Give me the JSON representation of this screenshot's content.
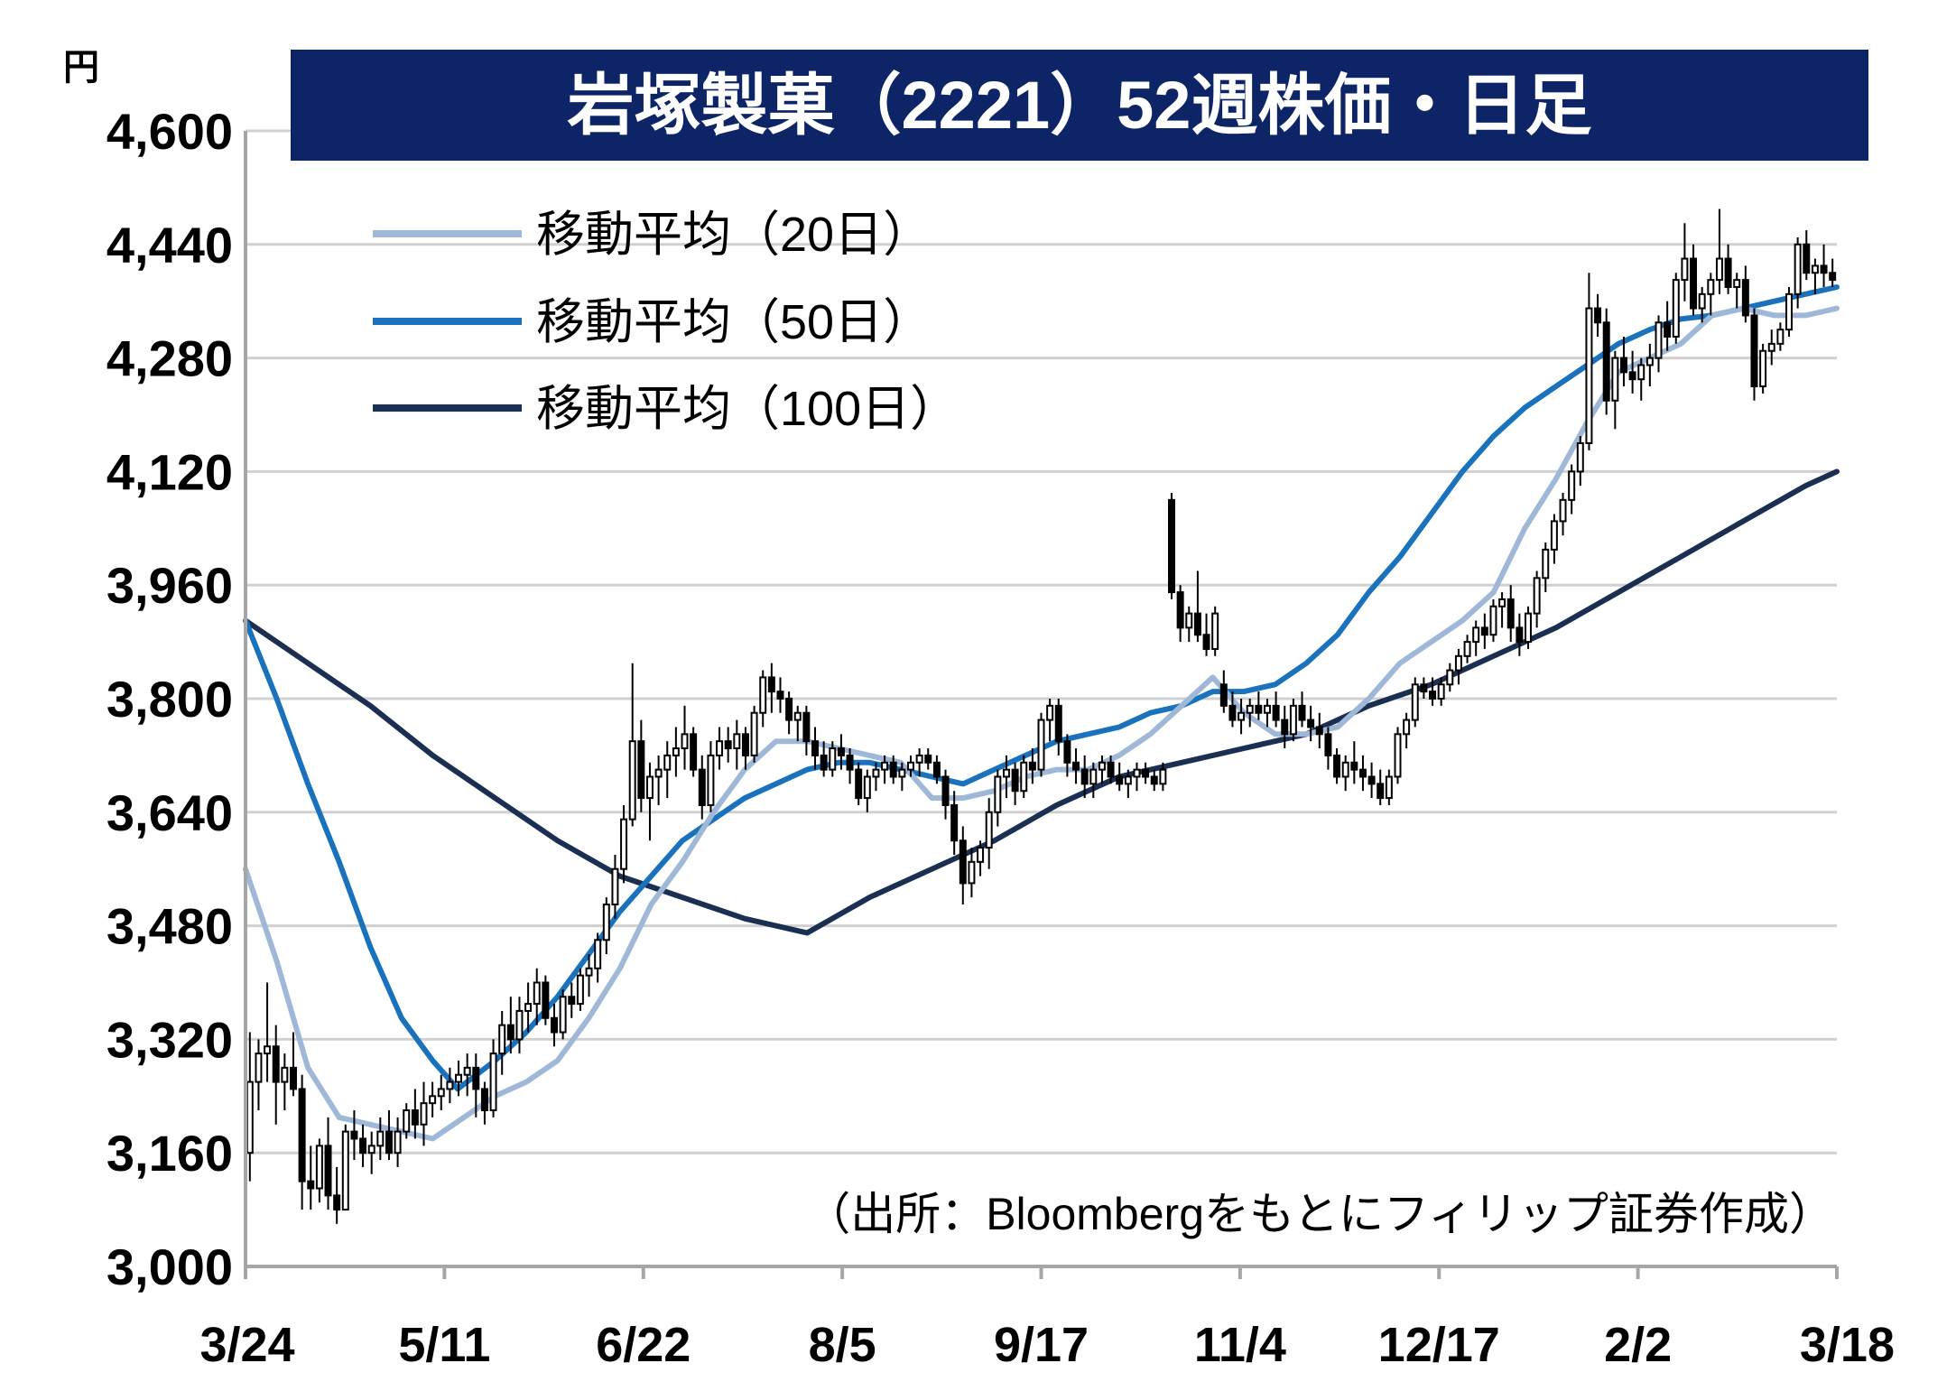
{
  "chart_data": {
    "type": "candlestick",
    "title": "岩塚製菓（2221）52週株価・日足",
    "yunit": "円",
    "ylim": [
      3000,
      4600
    ],
    "yticks": [
      "4,600",
      "4,440",
      "4,280",
      "4,120",
      "3,960",
      "3,800",
      "3,640",
      "3,480",
      "3,320",
      "3,160",
      "3,000"
    ],
    "xticks": [
      "3/24",
      "5/11",
      "6/22",
      "8/5",
      "9/17",
      "11/4",
      "12/17",
      "2/2",
      "3/18"
    ],
    "source": "（出所：Bloombergをもとにフィリップ証券作成）",
    "legend": [
      "移動平均（20日）",
      "移動平均（50日）",
      "移動平均（100日）"
    ],
    "colors": {
      "ma20": "#9fb8d8",
      "ma50": "#1a72bd",
      "ma100": "#1b2f52",
      "candle": "#000000",
      "grid": "#d0d0d0",
      "title_bg": "#0d2566"
    },
    "ma20_anchors": [
      [
        0,
        3560
      ],
      [
        5,
        3430
      ],
      [
        10,
        3280
      ],
      [
        15,
        3210
      ],
      [
        20,
        3200
      ],
      [
        25,
        3190
      ],
      [
        30,
        3180
      ],
      [
        35,
        3210
      ],
      [
        40,
        3240
      ],
      [
        45,
        3260
      ],
      [
        50,
        3290
      ],
      [
        55,
        3350
      ],
      [
        60,
        3420
      ],
      [
        65,
        3510
      ],
      [
        70,
        3570
      ],
      [
        75,
        3640
      ],
      [
        80,
        3700
      ],
      [
        85,
        3740
      ],
      [
        90,
        3740
      ],
      [
        95,
        3730
      ],
      [
        100,
        3720
      ],
      [
        105,
        3710
      ],
      [
        110,
        3660
      ],
      [
        115,
        3660
      ],
      [
        120,
        3670
      ],
      [
        125,
        3690
      ],
      [
        130,
        3700
      ],
      [
        135,
        3700
      ],
      [
        140,
        3720
      ],
      [
        145,
        3750
      ],
      [
        150,
        3790
      ],
      [
        155,
        3830
      ],
      [
        157,
        3810
      ],
      [
        160,
        3780
      ],
      [
        165,
        3750
      ],
      [
        170,
        3750
      ],
      [
        175,
        3760
      ],
      [
        180,
        3800
      ],
      [
        185,
        3850
      ],
      [
        190,
        3880
      ],
      [
        195,
        3910
      ],
      [
        200,
        3950
      ],
      [
        205,
        4040
      ],
      [
        210,
        4110
      ],
      [
        215,
        4190
      ],
      [
        220,
        4260
      ],
      [
        225,
        4280
      ],
      [
        230,
        4300
      ],
      [
        235,
        4340
      ],
      [
        240,
        4350
      ],
      [
        245,
        4340
      ],
      [
        250,
        4340
      ],
      [
        255,
        4350
      ]
    ],
    "ma50_anchors": [
      [
        0,
        3910
      ],
      [
        5,
        3800
      ],
      [
        10,
        3680
      ],
      [
        15,
        3570
      ],
      [
        20,
        3450
      ],
      [
        25,
        3350
      ],
      [
        30,
        3290
      ],
      [
        34,
        3250
      ],
      [
        40,
        3290
      ],
      [
        45,
        3330
      ],
      [
        50,
        3380
      ],
      [
        55,
        3440
      ],
      [
        60,
        3500
      ],
      [
        65,
        3550
      ],
      [
        70,
        3600
      ],
      [
        75,
        3630
      ],
      [
        80,
        3660
      ],
      [
        85,
        3680
      ],
      [
        90,
        3700
      ],
      [
        95,
        3710
      ],
      [
        100,
        3710
      ],
      [
        105,
        3700
      ],
      [
        110,
        3690
      ],
      [
        115,
        3680
      ],
      [
        120,
        3700
      ],
      [
        125,
        3720
      ],
      [
        130,
        3740
      ],
      [
        135,
        3750
      ],
      [
        140,
        3760
      ],
      [
        145,
        3780
      ],
      [
        150,
        3790
      ],
      [
        155,
        3810
      ],
      [
        160,
        3810
      ],
      [
        165,
        3820
      ],
      [
        170,
        3850
      ],
      [
        175,
        3890
      ],
      [
        180,
        3950
      ],
      [
        185,
        4000
      ],
      [
        190,
        4060
      ],
      [
        195,
        4120
      ],
      [
        200,
        4170
      ],
      [
        205,
        4210
      ],
      [
        210,
        4240
      ],
      [
        215,
        4270
      ],
      [
        220,
        4300
      ],
      [
        225,
        4320
      ],
      [
        230,
        4335
      ],
      [
        235,
        4340
      ],
      [
        240,
        4350
      ],
      [
        245,
        4360
      ],
      [
        250,
        4370
      ],
      [
        255,
        4380
      ]
    ],
    "ma100_anchors": [
      [
        0,
        3910
      ],
      [
        10,
        3850
      ],
      [
        20,
        3790
      ],
      [
        30,
        3720
      ],
      [
        40,
        3660
      ],
      [
        50,
        3600
      ],
      [
        60,
        3550
      ],
      [
        70,
        3520
      ],
      [
        80,
        3490
      ],
      [
        90,
        3470
      ],
      [
        96,
        3500
      ],
      [
        100,
        3520
      ],
      [
        110,
        3560
      ],
      [
        120,
        3600
      ],
      [
        130,
        3650
      ],
      [
        140,
        3690
      ],
      [
        150,
        3710
      ],
      [
        160,
        3730
      ],
      [
        170,
        3750
      ],
      [
        180,
        3790
      ],
      [
        190,
        3820
      ],
      [
        200,
        3860
      ],
      [
        210,
        3900
      ],
      [
        220,
        3950
      ],
      [
        230,
        4000
      ],
      [
        240,
        4050
      ],
      [
        250,
        4100
      ],
      [
        255,
        4120
      ]
    ],
    "candles": [
      [
        3160,
        3330,
        3120,
        3260
      ],
      [
        3260,
        3320,
        3220,
        3300
      ],
      [
        3300,
        3400,
        3260,
        3310
      ],
      [
        3310,
        3340,
        3200,
        3260
      ],
      [
        3260,
        3300,
        3220,
        3280
      ],
      [
        3280,
        3330,
        3240,
        3250
      ],
      [
        3250,
        3270,
        3080,
        3120
      ],
      [
        3120,
        3170,
        3080,
        3110
      ],
      [
        3110,
        3180,
        3090,
        3170
      ],
      [
        3170,
        3210,
        3080,
        3100
      ],
      [
        3100,
        3140,
        3060,
        3080
      ],
      [
        3080,
        3200,
        3080,
        3190
      ],
      [
        3190,
        3220,
        3150,
        3180
      ],
      [
        3180,
        3200,
        3140,
        3160
      ],
      [
        3160,
        3190,
        3130,
        3170
      ],
      [
        3170,
        3210,
        3150,
        3190
      ],
      [
        3190,
        3220,
        3150,
        3160
      ],
      [
        3160,
        3210,
        3140,
        3190
      ],
      [
        3190,
        3230,
        3180,
        3220
      ],
      [
        3220,
        3250,
        3180,
        3200
      ],
      [
        3200,
        3260,
        3170,
        3230
      ],
      [
        3230,
        3260,
        3210,
        3240
      ],
      [
        3240,
        3270,
        3220,
        3250
      ],
      [
        3250,
        3280,
        3230,
        3260
      ],
      [
        3260,
        3290,
        3240,
        3270
      ],
      [
        3270,
        3300,
        3240,
        3280
      ],
      [
        3280,
        3300,
        3210,
        3250
      ],
      [
        3250,
        3260,
        3200,
        3220
      ],
      [
        3220,
        3320,
        3210,
        3300
      ],
      [
        3300,
        3360,
        3270,
        3340
      ],
      [
        3340,
        3380,
        3300,
        3320
      ],
      [
        3320,
        3380,
        3300,
        3360
      ],
      [
        3360,
        3400,
        3330,
        3370
      ],
      [
        3370,
        3420,
        3340,
        3400
      ],
      [
        3400,
        3410,
        3340,
        3350
      ],
      [
        3350,
        3370,
        3310,
        3330
      ],
      [
        3330,
        3390,
        3320,
        3380
      ],
      [
        3380,
        3400,
        3350,
        3370
      ],
      [
        3370,
        3420,
        3360,
        3410
      ],
      [
        3410,
        3440,
        3380,
        3420
      ],
      [
        3420,
        3470,
        3400,
        3460
      ],
      [
        3460,
        3520,
        3440,
        3510
      ],
      [
        3510,
        3580,
        3490,
        3560
      ],
      [
        3560,
        3650,
        3540,
        3630
      ],
      [
        3630,
        3850,
        3620,
        3740
      ],
      [
        3740,
        3770,
        3640,
        3660
      ],
      [
        3660,
        3710,
        3600,
        3690
      ],
      [
        3690,
        3720,
        3650,
        3700
      ],
      [
        3700,
        3740,
        3660,
        3720
      ],
      [
        3720,
        3760,
        3690,
        3730
      ],
      [
        3730,
        3790,
        3700,
        3750
      ],
      [
        3750,
        3760,
        3690,
        3700
      ],
      [
        3700,
        3720,
        3630,
        3650
      ],
      [
        3650,
        3740,
        3640,
        3720
      ],
      [
        3720,
        3760,
        3700,
        3740
      ],
      [
        3740,
        3760,
        3710,
        3730
      ],
      [
        3730,
        3770,
        3700,
        3750
      ],
      [
        3750,
        3760,
        3700,
        3720
      ],
      [
        3720,
        3790,
        3710,
        3780
      ],
      [
        3780,
        3840,
        3760,
        3830
      ],
      [
        3830,
        3850,
        3780,
        3810
      ],
      [
        3810,
        3830,
        3780,
        3800
      ],
      [
        3800,
        3810,
        3750,
        3770
      ],
      [
        3770,
        3790,
        3740,
        3780
      ],
      [
        3780,
        3790,
        3720,
        3740
      ],
      [
        3740,
        3760,
        3700,
        3720
      ],
      [
        3720,
        3740,
        3690,
        3700
      ],
      [
        3700,
        3740,
        3690,
        3730
      ],
      [
        3730,
        3750,
        3700,
        3720
      ],
      [
        3720,
        3730,
        3680,
        3700
      ],
      [
        3700,
        3710,
        3650,
        3660
      ],
      [
        3660,
        3700,
        3640,
        3690
      ],
      [
        3690,
        3710,
        3670,
        3700
      ],
      [
        3700,
        3720,
        3680,
        3710
      ],
      [
        3710,
        3720,
        3680,
        3690
      ],
      [
        3690,
        3710,
        3670,
        3700
      ],
      [
        3700,
        3720,
        3690,
        3710
      ],
      [
        3710,
        3730,
        3690,
        3720
      ],
      [
        3720,
        3730,
        3700,
        3710
      ],
      [
        3710,
        3720,
        3680,
        3690
      ],
      [
        3690,
        3700,
        3630,
        3650
      ],
      [
        3650,
        3670,
        3580,
        3600
      ],
      [
        3600,
        3620,
        3510,
        3540
      ],
      [
        3540,
        3590,
        3520,
        3570
      ],
      [
        3570,
        3600,
        3550,
        3590
      ],
      [
        3590,
        3660,
        3560,
        3640
      ],
      [
        3640,
        3700,
        3620,
        3690
      ],
      [
        3690,
        3720,
        3660,
        3700
      ],
      [
        3700,
        3710,
        3650,
        3670
      ],
      [
        3670,
        3720,
        3660,
        3710
      ],
      [
        3710,
        3730,
        3680,
        3700
      ],
      [
        3700,
        3780,
        3690,
        3770
      ],
      [
        3770,
        3800,
        3740,
        3790
      ],
      [
        3790,
        3800,
        3720,
        3740
      ],
      [
        3740,
        3750,
        3690,
        3710
      ],
      [
        3710,
        3730,
        3680,
        3700
      ],
      [
        3700,
        3720,
        3660,
        3680
      ],
      [
        3680,
        3710,
        3660,
        3700
      ],
      [
        3700,
        3720,
        3680,
        3710
      ],
      [
        3710,
        3720,
        3680,
        3690
      ],
      [
        3690,
        3710,
        3670,
        3680
      ],
      [
        3680,
        3700,
        3660,
        3690
      ],
      [
        3690,
        3710,
        3670,
        3700
      ],
      [
        3700,
        3710,
        3680,
        3690
      ],
      [
        3690,
        3700,
        3670,
        3680
      ],
      [
        3680,
        3710,
        3670,
        3700
      ],
      [
        4080,
        4090,
        3940,
        3950
      ],
      [
        3950,
        3960,
        3880,
        3900
      ],
      [
        3900,
        3930,
        3880,
        3920
      ],
      [
        3920,
        3980,
        3880,
        3890
      ],
      [
        3890,
        3920,
        3860,
        3870
      ],
      [
        3870,
        3930,
        3860,
        3920
      ],
      [
        3820,
        3840,
        3780,
        3790
      ],
      [
        3790,
        3810,
        3760,
        3770
      ],
      [
        3770,
        3800,
        3750,
        3780
      ],
      [
        3780,
        3800,
        3760,
        3790
      ],
      [
        3790,
        3810,
        3770,
        3780
      ],
      [
        3780,
        3800,
        3760,
        3790
      ],
      [
        3790,
        3810,
        3760,
        3770
      ],
      [
        3770,
        3790,
        3730,
        3750
      ],
      [
        3750,
        3800,
        3740,
        3790
      ],
      [
        3790,
        3810,
        3760,
        3770
      ],
      [
        3770,
        3790,
        3740,
        3760
      ],
      [
        3760,
        3780,
        3730,
        3750
      ],
      [
        3750,
        3760,
        3700,
        3720
      ],
      [
        3720,
        3730,
        3680,
        3690
      ],
      [
        3690,
        3720,
        3670,
        3710
      ],
      [
        3710,
        3740,
        3680,
        3700
      ],
      [
        3700,
        3720,
        3670,
        3690
      ],
      [
        3690,
        3710,
        3660,
        3680
      ],
      [
        3680,
        3700,
        3650,
        3660
      ],
      [
        3660,
        3700,
        3650,
        3690
      ],
      [
        3690,
        3760,
        3680,
        3750
      ],
      [
        3750,
        3780,
        3730,
        3770
      ],
      [
        3770,
        3830,
        3760,
        3820
      ],
      [
        3820,
        3830,
        3800,
        3810
      ],
      [
        3810,
        3830,
        3790,
        3800
      ],
      [
        3800,
        3830,
        3790,
        3820
      ],
      [
        3820,
        3850,
        3810,
        3840
      ],
      [
        3840,
        3870,
        3820,
        3860
      ],
      [
        3860,
        3890,
        3850,
        3880
      ],
      [
        3880,
        3910,
        3860,
        3900
      ],
      [
        3900,
        3920,
        3870,
        3890
      ],
      [
        3890,
        3940,
        3880,
        3930
      ],
      [
        3930,
        3950,
        3900,
        3940
      ],
      [
        3940,
        3960,
        3880,
        3900
      ],
      [
        3900,
        3920,
        3860,
        3880
      ],
      [
        3880,
        3930,
        3870,
        3920
      ],
      [
        3920,
        3980,
        3900,
        3970
      ],
      [
        3970,
        4020,
        3950,
        4010
      ],
      [
        4010,
        4060,
        3990,
        4050
      ],
      [
        4050,
        4090,
        4030,
        4080
      ],
      [
        4080,
        4130,
        4060,
        4120
      ],
      [
        4120,
        4170,
        4100,
        4160
      ],
      [
        4160,
        4400,
        4150,
        4350
      ],
      [
        4350,
        4370,
        4310,
        4330
      ],
      [
        4330,
        4350,
        4200,
        4220
      ],
      [
        4220,
        4290,
        4180,
        4280
      ],
      [
        4280,
        4310,
        4240,
        4260
      ],
      [
        4260,
        4290,
        4230,
        4250
      ],
      [
        4250,
        4280,
        4220,
        4270
      ],
      [
        4270,
        4300,
        4240,
        4280
      ],
      [
        4280,
        4340,
        4260,
        4330
      ],
      [
        4330,
        4360,
        4290,
        4310
      ],
      [
        4310,
        4400,
        4300,
        4390
      ],
      [
        4390,
        4470,
        4360,
        4420
      ],
      [
        4420,
        4440,
        4340,
        4350
      ],
      [
        4350,
        4380,
        4330,
        4370
      ],
      [
        4370,
        4400,
        4340,
        4390
      ],
      [
        4390,
        4490,
        4370,
        4420
      ],
      [
        4420,
        4440,
        4370,
        4380
      ],
      [
        4380,
        4400,
        4350,
        4390
      ],
      [
        4390,
        4410,
        4330,
        4340
      ],
      [
        4340,
        4350,
        4220,
        4240
      ],
      [
        4240,
        4300,
        4230,
        4290
      ],
      [
        4290,
        4320,
        4270,
        4300
      ],
      [
        4300,
        4330,
        4290,
        4320
      ],
      [
        4320,
        4380,
        4310,
        4370
      ],
      [
        4370,
        4450,
        4350,
        4440
      ],
      [
        4440,
        4460,
        4390,
        4400
      ],
      [
        4400,
        4420,
        4370,
        4410
      ],
      [
        4410,
        4440,
        4380,
        4400
      ],
      [
        4400,
        4420,
        4380,
        4390
      ]
    ]
  }
}
